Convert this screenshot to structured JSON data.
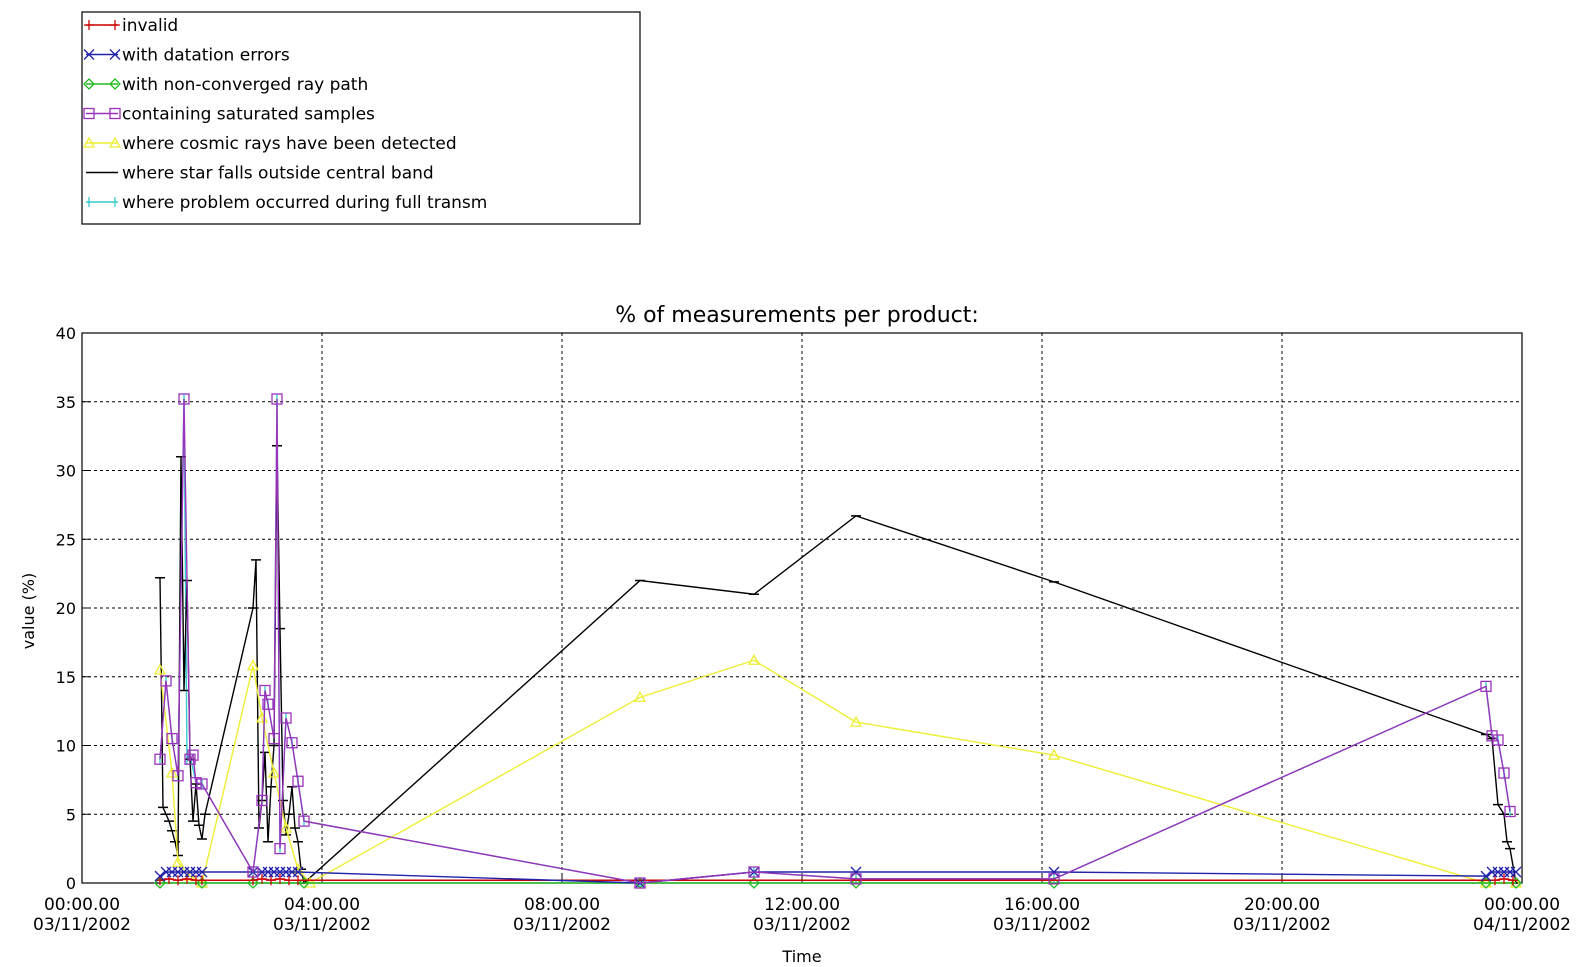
{
  "chart_data": {
    "type": "line",
    "title": "% of measurements per product:",
    "xlabel": "Time",
    "ylabel": "value (%)",
    "xlim": [
      "03/11/2002 00:00:00",
      "04/11/2002 00:00:00"
    ],
    "ylim": [
      0,
      40
    ],
    "grid": true,
    "legend_position": "top-left",
    "y_ticks": [
      "0",
      "5",
      "10",
      "15",
      "20",
      "25",
      "30",
      "35",
      "40"
    ],
    "x_ticks": [
      {
        "time": "00:00.00",
        "date": "03/11/2002",
        "hour": 0
      },
      {
        "time": "04:00.00",
        "date": "03/11/2002",
        "hour": 4
      },
      {
        "time": "08:00.00",
        "date": "03/11/2002",
        "hour": 8
      },
      {
        "time": "12:00.00",
        "date": "03/11/2002",
        "hour": 12
      },
      {
        "time": "16:00.00",
        "date": "03/11/2002",
        "hour": 16
      },
      {
        "time": "20:00.00",
        "date": "03/11/2002",
        "hour": 20
      },
      {
        "time": "00:00.00",
        "date": "04/11/2002",
        "hour": 24
      }
    ],
    "series": [
      {
        "name": "invalid",
        "color": "#cc0000",
        "marker": "plus",
        "x": [
          1.3,
          1.45,
          1.6,
          1.75,
          1.9,
          2.0,
          2.85,
          3.0,
          3.15,
          3.3,
          3.45,
          3.6,
          23.55,
          23.7,
          23.85
        ],
        "y": [
          0.2,
          0.3,
          0.2,
          0.3,
          0.2,
          0.2,
          0.2,
          0.3,
          0.2,
          0.3,
          0.2,
          0.2,
          0.2,
          0.3,
          0.2
        ]
      },
      {
        "name": "with datation errors",
        "color": "#2222aa",
        "marker": "x",
        "x": [
          1.3,
          1.4,
          1.5,
          1.6,
          1.7,
          1.8,
          1.9,
          2.0,
          2.85,
          3.0,
          3.1,
          3.2,
          3.3,
          3.4,
          3.5,
          3.6,
          9.3,
          11.2,
          12.9,
          16.2,
          23.4,
          23.5,
          23.6,
          23.7,
          23.8,
          23.9
        ],
        "y": [
          0.5,
          0.8,
          0.8,
          0.8,
          0.8,
          0.8,
          0.8,
          0.8,
          0.8,
          0.8,
          0.8,
          0.8,
          0.8,
          0.8,
          0.8,
          0.8,
          0.0,
          0.8,
          0.8,
          0.8,
          0.5,
          0.8,
          0.8,
          0.8,
          0.8,
          0.8
        ]
      },
      {
        "name": "with non-converged ray path",
        "color": "#22bb22",
        "marker": "diamond",
        "x": [
          1.3,
          2.0,
          2.85,
          3.7,
          9.3,
          11.2,
          12.9,
          16.2,
          23.4,
          23.9
        ],
        "y": [
          0,
          0,
          0,
          0,
          0,
          0,
          0,
          0,
          0,
          0
        ]
      },
      {
        "name": "containing saturated samples",
        "color": "#9933bb",
        "marker": "square",
        "x": [
          1.3,
          1.4,
          1.5,
          1.6,
          1.7,
          1.8,
          1.85,
          1.9,
          2.0,
          2.85,
          3.0,
          3.05,
          3.1,
          3.2,
          3.25,
          3.3,
          3.4,
          3.5,
          3.6,
          3.7,
          9.3,
          11.2,
          12.9,
          16.2,
          23.4,
          23.5,
          23.6,
          23.7,
          23.8
        ],
        "y": [
          9,
          14.7,
          10.5,
          7.8,
          35.2,
          9,
          9.3,
          7.3,
          7.2,
          0.8,
          6,
          14,
          13,
          10.5,
          35.2,
          2.5,
          12,
          10.2,
          7.4,
          4.5,
          0,
          0.8,
          0.3,
          0.3,
          14.3,
          10.7,
          10.4,
          8,
          5.2
        ]
      },
      {
        "name": "where cosmic rays have been detected",
        "color": "#eeee33",
        "marker": "triangle",
        "x": [
          1.3,
          1.5,
          1.6,
          1.8,
          2.0,
          2.85,
          3.0,
          3.2,
          3.4,
          3.6,
          3.8,
          9.3,
          11.2,
          12.9,
          16.2,
          23.4,
          23.9
        ],
        "y": [
          15.5,
          8,
          1.5,
          0.5,
          0,
          15.8,
          12,
          8,
          4,
          1,
          0,
          13.5,
          16.2,
          11.7,
          9.3,
          0,
          0
        ]
      },
      {
        "name": "where star falls outside central band",
        "color": "#000000",
        "marker": "dash",
        "x": [
          1.3,
          1.35,
          1.4,
          1.45,
          1.5,
          1.55,
          1.6,
          1.65,
          1.7,
          1.75,
          1.8,
          1.85,
          1.9,
          1.95,
          2.0,
          2.05,
          2.85,
          2.9,
          2.95,
          3.0,
          3.05,
          3.1,
          3.15,
          3.2,
          3.25,
          3.3,
          3.35,
          3.4,
          3.45,
          3.5,
          3.55,
          3.6,
          3.65,
          3.7,
          9.3,
          11.2,
          12.9,
          16.2,
          23.4,
          23.5,
          23.6,
          23.7,
          23.75,
          23.8,
          23.9
        ],
        "y": [
          22.2,
          5.5,
          5,
          4.5,
          3.8,
          3,
          2,
          31,
          14,
          22,
          9,
          4.5,
          7.2,
          4.2,
          3.2,
          5,
          20,
          23.5,
          4,
          6,
          9.5,
          3,
          7,
          10,
          31.8,
          18.5,
          6,
          3.5,
          5,
          7,
          4,
          3,
          1,
          0,
          22,
          21,
          26.7,
          21.9,
          10.8,
          10.5,
          5.7,
          5,
          3,
          2.5,
          0
        ]
      },
      {
        "name": "where problem occurred during full transm",
        "color": "#33cccc",
        "marker": "vbar",
        "x": [
          1.3,
          1.4,
          1.5,
          1.6,
          1.7,
          1.75,
          1.8,
          1.9,
          2.0,
          2.85,
          3.0,
          3.05,
          3.1,
          3.2,
          3.25,
          3.3,
          3.4,
          3.5,
          3.6,
          3.7,
          9.3,
          11.2,
          12.9,
          16.2,
          23.4,
          23.5,
          23.6,
          23.7,
          23.8
        ],
        "y": [
          9,
          14.7,
          10.5,
          7.8,
          35.2,
          9,
          9.3,
          7.3,
          7.2,
          0.8,
          6,
          14,
          13,
          10.5,
          35.2,
          2.5,
          12,
          10.2,
          7.4,
          4.5,
          0,
          0.8,
          0.3,
          0.3,
          14.3,
          10.7,
          10.4,
          8,
          5.2
        ]
      }
    ]
  }
}
